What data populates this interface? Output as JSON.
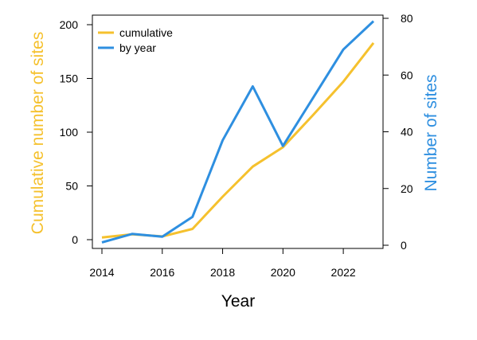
{
  "chart_data": {
    "type": "line",
    "title": "",
    "xlabel": "Year",
    "ylabel_left": "Cumulative number of sites",
    "ylabel_right": "Number of sites",
    "x": [
      2014,
      2015,
      2016,
      2017,
      2018,
      2019,
      2020,
      2021,
      2022,
      2023
    ],
    "xlim": [
      2014,
      2023
    ],
    "x_ticks": [
      2014,
      2016,
      2018,
      2020,
      2022
    ],
    "ylim_left": [
      0,
      200
    ],
    "y_ticks_left": [
      0,
      50,
      100,
      150,
      200
    ],
    "ylim_right": [
      0,
      80
    ],
    "y_ticks_right": [
      0,
      20,
      40,
      60,
      80
    ],
    "grid": false,
    "legend_position": "top-left",
    "series": [
      {
        "name": "cumulative",
        "axis": "left",
        "color": "#F5C12E",
        "values": [
          2,
          5,
          3,
          10,
          40,
          68,
          86,
          116,
          147,
          183
        ]
      },
      {
        "name": "by year",
        "axis": "right",
        "color": "#2E8FE0",
        "values": [
          1,
          4,
          3,
          10,
          37,
          56,
          35,
          52,
          69,
          79
        ]
      }
    ]
  }
}
